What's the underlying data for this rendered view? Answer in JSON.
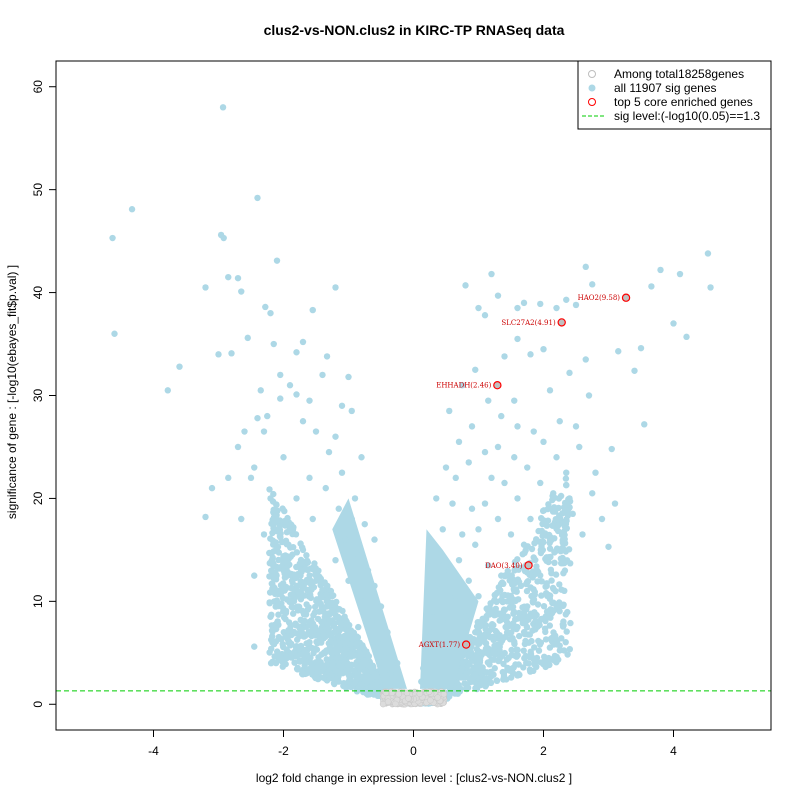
{
  "chart_data": {
    "type": "scatter",
    "title": "clus2-vs-NON.clus2 in KIRC-TP RNASeq data",
    "xlabel": "log2 fold change in expression level : [clus2-vs-NON.clus2 ]",
    "ylabel": "significance of gene : [-log10(ebayes_fit$p.val) ]",
    "xlim": [
      -5.5,
      5.5
    ],
    "ylim": [
      -2.5,
      62.5
    ],
    "xticks": [
      -4,
      -2,
      0,
      2,
      4
    ],
    "yticks": [
      0,
      10,
      20,
      30,
      40,
      50,
      60
    ],
    "sig_level": 1.3,
    "legend": {
      "position": "top-right",
      "entries": [
        {
          "label": "Among total18258genes",
          "kind": "open-circle",
          "color": "#bebebe"
        },
        {
          "label": "all 11907 sig genes",
          "kind": "filled-circle",
          "color": "#add8e6"
        },
        {
          "label": "top 5 core enriched genes",
          "kind": "open-circle",
          "color": "#ff0000"
        },
        {
          "label": "sig level:(-log10(0.05)==1.3",
          "kind": "dashed-line",
          "color": "#00cc00"
        }
      ]
    },
    "top_genes": [
      {
        "label": "HAO2(9.58)",
        "x": 3.27,
        "y": 39.5
      },
      {
        "label": "SLC27A2(4.91)",
        "x": 2.28,
        "y": 37.1
      },
      {
        "label": "EHHADH(2.46)",
        "x": 1.29,
        "y": 31.0
      },
      {
        "label": "DAO(3.40)",
        "x": 1.77,
        "y": 13.5
      },
      {
        "label": "AGXT(1.77)",
        "x": 0.81,
        "y": 5.8
      }
    ],
    "sig_points": [
      [
        -2.93,
        58.0
      ],
      [
        -2.4,
        49.2
      ],
      [
        -4.33,
        48.1
      ],
      [
        -4.63,
        45.3
      ],
      [
        -2.96,
        45.6
      ],
      [
        -2.92,
        45.3
      ],
      [
        -2.1,
        43.1
      ],
      [
        -2.85,
        41.5
      ],
      [
        -2.7,
        41.4
      ],
      [
        -3.2,
        40.5
      ],
      [
        -1.2,
        40.5
      ],
      [
        -2.65,
        40.1
      ],
      [
        -2.28,
        38.6
      ],
      [
        -2.2,
        38.0
      ],
      [
        -3.6,
        32.8
      ],
      [
        -3.78,
        30.5
      ],
      [
        -4.6,
        36.0
      ],
      [
        -3.0,
        34.0
      ],
      [
        -2.8,
        34.1
      ],
      [
        -2.55,
        35.6
      ],
      [
        -2.15,
        35.0
      ],
      [
        -1.8,
        34.2
      ],
      [
        -1.7,
        35.2
      ],
      [
        -1.55,
        38.3
      ],
      [
        -1.33,
        33.8
      ],
      [
        -2.05,
        32.0
      ],
      [
        -1.4,
        32.0
      ],
      [
        -2.35,
        30.5
      ],
      [
        -1.8,
        30.1
      ],
      [
        -1.9,
        31.0
      ],
      [
        -1.6,
        29.5
      ],
      [
        -2.05,
        29.7
      ],
      [
        -2.4,
        27.8
      ],
      [
        -2.25,
        28.0
      ],
      [
        -2.6,
        26.5
      ],
      [
        -2.7,
        25.0
      ],
      [
        -3.1,
        21.0
      ],
      [
        -3.2,
        18.2
      ],
      [
        -2.65,
        18.0
      ],
      [
        -2.85,
        22.0
      ],
      [
        -2.45,
        23.0
      ],
      [
        -1.0,
        31.8
      ],
      [
        -0.8,
        24.0
      ],
      [
        -2.2,
        20.0
      ],
      [
        -2.3,
        16.5
      ],
      [
        -2.45,
        12.5
      ],
      [
        -2.2,
        8.5
      ],
      [
        -2.45,
        5.6
      ],
      [
        -1.9,
        10.0
      ],
      [
        -1.95,
        5.3
      ],
      [
        -1.6,
        8.0
      ],
      [
        -1.3,
        7.0
      ],
      [
        -1.05,
        5.5
      ],
      [
        -1.5,
        12.0
      ],
      [
        -1.7,
        15.0
      ],
      [
        -1.2,
        14.0
      ],
      [
        -1.0,
        12.0
      ],
      [
        -0.8,
        10.0
      ],
      [
        -0.65,
        8.0
      ],
      [
        -0.55,
        6.0
      ],
      [
        -0.45,
        4.5
      ],
      [
        -0.35,
        3.0
      ],
      [
        -0.3,
        2.2
      ],
      [
        -0.9,
        20.0
      ],
      [
        -1.1,
        22.5
      ],
      [
        -1.3,
        24.5
      ],
      [
        -1.5,
        26.5
      ],
      [
        -1.7,
        27.5
      ],
      [
        -0.95,
        28.5
      ],
      [
        -1.1,
        29.0
      ],
      [
        -1.2,
        26.0
      ],
      [
        -1.35,
        21.0
      ],
      [
        -1.55,
        18.0
      ],
      [
        -1.8,
        20.0
      ],
      [
        -2.0,
        24.0
      ],
      [
        -2.0,
        13.0
      ],
      [
        -1.75,
        10.5
      ],
      [
        -1.45,
        9.0
      ],
      [
        -1.25,
        10.5
      ],
      [
        -1.05,
        16.0
      ],
      [
        -0.85,
        14.5
      ],
      [
        -0.75,
        17.5
      ],
      [
        -0.6,
        11.5
      ],
      [
        -0.5,
        9.5
      ],
      [
        -0.7,
        13.0
      ],
      [
        -0.95,
        18.0
      ],
      [
        -1.15,
        19.0
      ],
      [
        -0.4,
        7.0
      ],
      [
        -0.25,
        4.0
      ],
      [
        -0.6,
        16.0
      ],
      [
        -0.85,
        7.5
      ],
      [
        -1.6,
        22.0
      ],
      [
        -1.9,
        17.0
      ],
      [
        -2.3,
        26.5
      ],
      [
        -2.5,
        22.0
      ],
      [
        4.53,
        43.8
      ],
      [
        4.57,
        40.5
      ],
      [
        3.8,
        42.2
      ],
      [
        4.1,
        41.8
      ],
      [
        3.66,
        40.6
      ],
      [
        2.65,
        42.5
      ],
      [
        2.75,
        40.8
      ],
      [
        2.35,
        39.3
      ],
      [
        2.5,
        38.8
      ],
      [
        2.2,
        38.5
      ],
      [
        1.95,
        38.9
      ],
      [
        1.7,
        39.0
      ],
      [
        1.6,
        38.5
      ],
      [
        1.3,
        39.7
      ],
      [
        1.0,
        38.5
      ],
      [
        1.1,
        37.8
      ],
      [
        0.8,
        40.7
      ],
      [
        1.2,
        41.8
      ],
      [
        4.0,
        37.0
      ],
      [
        4.2,
        35.7
      ],
      [
        3.5,
        34.6
      ],
      [
        3.15,
        34.3
      ],
      [
        3.4,
        32.4
      ],
      [
        2.65,
        33.5
      ],
      [
        2.7,
        30.0
      ],
      [
        3.55,
        27.2
      ],
      [
        3.05,
        24.8
      ],
      [
        2.4,
        32.2
      ],
      [
        2.0,
        34.5
      ],
      [
        1.8,
        34.0
      ],
      [
        1.6,
        35.5
      ],
      [
        1.4,
        33.8
      ],
      [
        2.1,
        30.5
      ],
      [
        1.55,
        29.5
      ],
      [
        1.35,
        28.0
      ],
      [
        1.15,
        29.5
      ],
      [
        0.95,
        32.5
      ],
      [
        0.75,
        31.0
      ],
      [
        0.55,
        28.5
      ],
      [
        0.9,
        27.0
      ],
      [
        1.6,
        27.0
      ],
      [
        1.85,
        26.5
      ],
      [
        2.25,
        27.5
      ],
      [
        2.5,
        27.0
      ],
      [
        2.8,
        22.5
      ],
      [
        3.1,
        19.5
      ],
      [
        3.0,
        15.3
      ],
      [
        2.75,
        20.5
      ],
      [
        2.9,
        18.0
      ],
      [
        2.45,
        18.5
      ],
      [
        2.6,
        16.5
      ],
      [
        2.3,
        14.0
      ],
      [
        2.1,
        16.0
      ],
      [
        1.9,
        13.0
      ],
      [
        2.15,
        20.5
      ],
      [
        1.95,
        21.5
      ],
      [
        2.35,
        22.5
      ],
      [
        2.55,
        25.0
      ],
      [
        2.0,
        25.5
      ],
      [
        1.75,
        23.0
      ],
      [
        1.55,
        24.0
      ],
      [
        1.3,
        25.0
      ],
      [
        1.1,
        24.5
      ],
      [
        0.85,
        23.5
      ],
      [
        0.65,
        22.0
      ],
      [
        0.6,
        19.5
      ],
      [
        0.45,
        17.0
      ],
      [
        0.4,
        14.0
      ],
      [
        0.35,
        11.5
      ],
      [
        0.3,
        9.0
      ],
      [
        0.25,
        7.0
      ],
      [
        0.2,
        5.0
      ],
      [
        0.15,
        3.5
      ],
      [
        0.12,
        2.2
      ],
      [
        0.55,
        13.0
      ],
      [
        0.65,
        10.5
      ],
      [
        0.8,
        8.5
      ],
      [
        0.95,
        7.0
      ],
      [
        1.1,
        6.0
      ],
      [
        1.25,
        5.0
      ],
      [
        1.4,
        6.5
      ],
      [
        1.6,
        7.5
      ],
      [
        1.75,
        9.5
      ],
      [
        1.55,
        11.0
      ],
      [
        1.35,
        12.5
      ],
      [
        1.15,
        13.5
      ],
      [
        0.95,
        15.5
      ],
      [
        0.75,
        16.5
      ],
      [
        0.9,
        19.0
      ],
      [
        1.1,
        19.5
      ],
      [
        1.3,
        18.0
      ],
      [
        1.5,
        16.5
      ],
      [
        1.7,
        15.5
      ],
      [
        1.6,
        20.0
      ],
      [
        1.4,
        21.5
      ],
      [
        1.2,
        22.0
      ],
      [
        0.7,
        25.5
      ],
      [
        0.5,
        23.0
      ],
      [
        0.35,
        20.0
      ],
      [
        1.8,
        18.0
      ],
      [
        2.05,
        11.5
      ],
      [
        1.9,
        4.5
      ],
      [
        1.6,
        2.8
      ],
      [
        1.25,
        3.5
      ],
      [
        0.75,
        4.0
      ],
      [
        0.55,
        6.0
      ],
      [
        0.45,
        8.0
      ],
      [
        1.0,
        10.5
      ],
      [
        1.2,
        9.0
      ],
      [
        1.45,
        8.5
      ],
      [
        0.85,
        12.0
      ],
      [
        0.7,
        14.0
      ],
      [
        1.0,
        17.0
      ],
      [
        2.4,
        20.0
      ],
      [
        2.2,
        24.0
      ]
    ]
  }
}
